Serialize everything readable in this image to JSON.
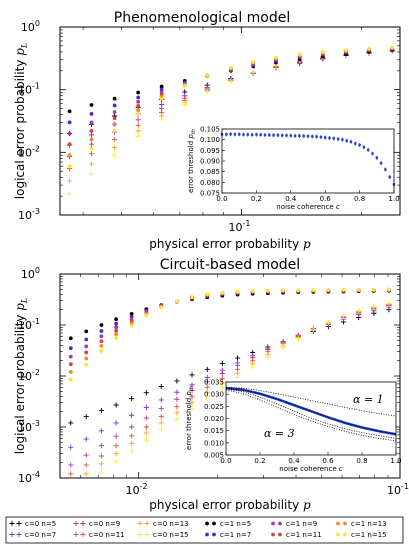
{
  "colors": {
    "c0_n5": "#000000",
    "c0_n7": "#8a2be2",
    "c0_n9": "#b8359c",
    "c0_n11": "#e0543a",
    "c0_n13": "#f5a623",
    "c0_n15": "#ffee33",
    "c1_n5": "#000000",
    "c1_n7": "#4b2ac8",
    "c1_n9": "#9b3dbd",
    "c1_n11": "#e23c3c",
    "c1_n13": "#f08a30",
    "c1_n15": "#ffe033",
    "inset_line": "#1f3fd6"
  },
  "legend": {
    "row1": [
      "c=0 n=5",
      "c=0 n=9",
      "c=0 n=13",
      "c=1 n=5",
      "c=1 n=9",
      "c=1 n=13"
    ],
    "row2": [
      "c=0 n=7",
      "c=0 n=11",
      "c=0 n=15",
      "c=1 n=7",
      "c=1 n=11",
      "c=1 n=15"
    ]
  },
  "chart_data": [
    {
      "type": "scatter",
      "title": "Phenomenological model",
      "xlabel": "physical error probability p",
      "ylabel": "logical error probability p_L",
      "xscale": "log",
      "yscale": "log",
      "xlim": [
        0.035,
        0.25
      ],
      "ylim": [
        0.001,
        1
      ],
      "x_tick_labels": [
        "10^-1"
      ],
      "y_tick_labels": [
        "10^-3",
        "10^-2",
        "10^-1",
        "10^0"
      ],
      "x": [
        0.037,
        0.042,
        0.048,
        0.055,
        0.063,
        0.072,
        0.082,
        0.094,
        0.107,
        0.122,
        0.14,
        0.16,
        0.183,
        0.209,
        0.239
      ],
      "series": [
        {
          "name": "c=0 n=5",
          "marker": "+",
          "values": [
            0.02,
            0.028,
            0.038,
            0.052,
            0.07,
            0.092,
            0.118,
            0.15,
            0.185,
            0.225,
            0.265,
            0.31,
            0.35,
            0.385,
            0.415
          ]
        },
        {
          "name": "c=0 n=7",
          "marker": "+",
          "values": [
            0.013,
            0.019,
            0.028,
            0.041,
            0.058,
            0.08,
            0.108,
            0.142,
            0.182,
            0.225,
            0.27,
            0.315,
            0.355,
            0.39,
            0.42
          ]
        },
        {
          "name": "c=0 n=9",
          "marker": "+",
          "values": [
            0.0085,
            0.0135,
            0.021,
            0.033,
            0.05,
            0.073,
            0.103,
            0.14,
            0.183,
            0.23,
            0.278,
            0.322,
            0.362,
            0.395,
            0.425
          ]
        },
        {
          "name": "c=0 n=11",
          "marker": "+",
          "values": [
            0.0055,
            0.0095,
            0.016,
            0.027,
            0.043,
            0.067,
            0.099,
            0.139,
            0.185,
            0.235,
            0.285,
            0.33,
            0.368,
            0.4,
            0.43
          ]
        },
        {
          "name": "c=0 n=13",
          "marker": "+",
          "values": [
            0.0035,
            0.0065,
            0.012,
            0.022,
            0.038,
            0.062,
            0.096,
            0.138,
            0.188,
            0.24,
            0.29,
            0.335,
            0.372,
            0.404,
            0.432
          ]
        },
        {
          "name": "c=0 n=15",
          "marker": "+",
          "values": [
            0.0022,
            0.0045,
            0.009,
            0.018,
            0.033,
            0.058,
            0.093,
            0.138,
            0.19,
            0.245,
            0.295,
            0.34,
            0.376,
            0.407,
            0.434
          ]
        },
        {
          "name": "c=1 n=5",
          "marker": "o",
          "values": [
            0.045,
            0.057,
            0.072,
            0.09,
            0.112,
            0.138,
            0.168,
            0.2,
            0.235,
            0.27,
            0.305,
            0.34,
            0.37,
            0.4,
            0.43
          ]
        },
        {
          "name": "c=1 n=7",
          "marker": "o",
          "values": [
            0.03,
            0.041,
            0.056,
            0.075,
            0.1,
            0.13,
            0.165,
            0.205,
            0.245,
            0.285,
            0.325,
            0.36,
            0.39,
            0.42,
            0.445
          ]
        },
        {
          "name": "c=1 n=9",
          "marker": "o",
          "values": [
            0.02,
            0.03,
            0.044,
            0.064,
            0.09,
            0.124,
            0.164,
            0.21,
            0.255,
            0.3,
            0.34,
            0.375,
            0.405,
            0.43,
            0.455
          ]
        },
        {
          "name": "c=1 n=11",
          "marker": "o",
          "values": [
            0.0135,
            0.022,
            0.035,
            0.055,
            0.083,
            0.12,
            0.165,
            0.215,
            0.265,
            0.31,
            0.35,
            0.385,
            0.415,
            0.44,
            0.46
          ]
        },
        {
          "name": "c=1 n=13",
          "marker": "o",
          "values": [
            0.009,
            0.016,
            0.028,
            0.047,
            0.077,
            0.117,
            0.166,
            0.22,
            0.272,
            0.318,
            0.358,
            0.392,
            0.42,
            0.445,
            0.465
          ]
        },
        {
          "name": "c=1 n=15",
          "marker": "o",
          "values": [
            0.006,
            0.0115,
            0.022,
            0.041,
            0.072,
            0.115,
            0.168,
            0.225,
            0.278,
            0.325,
            0.365,
            0.398,
            0.425,
            0.45,
            0.47
          ]
        }
      ],
      "inset": {
        "type": "scatter",
        "xlabel": "noise coherence c",
        "ylabel": "error threshold p_th",
        "xlim": [
          0,
          1
        ],
        "ylim": [
          0.075,
          0.105
        ],
        "x_tick_labels": [
          "0.0",
          "0.2",
          "0.4",
          "0.6",
          "0.8",
          "1.0"
        ],
        "y_tick_labels": [
          "0.075",
          "0.080",
          "0.085",
          "0.090",
          "0.095",
          "0.100",
          "0.105"
        ],
        "x": [
          0,
          0.025,
          0.05,
          0.075,
          0.1,
          0.125,
          0.15,
          0.175,
          0.2,
          0.225,
          0.25,
          0.275,
          0.3,
          0.325,
          0.35,
          0.375,
          0.4,
          0.425,
          0.45,
          0.475,
          0.5,
          0.525,
          0.55,
          0.575,
          0.6,
          0.625,
          0.65,
          0.675,
          0.7,
          0.725,
          0.75,
          0.775,
          0.8,
          0.825,
          0.85,
          0.875,
          0.9,
          0.925,
          0.95,
          0.975,
          1.0
        ],
        "values": [
          0.1025,
          0.1025,
          0.1026,
          0.1025,
          0.1025,
          0.1024,
          0.1024,
          0.1023,
          0.1024,
          0.1023,
          0.1022,
          0.1022,
          0.1021,
          0.1021,
          0.102,
          0.102,
          0.1019,
          0.1018,
          0.1018,
          0.1017,
          0.1016,
          0.1015,
          0.1014,
          0.1012,
          0.101,
          0.1008,
          0.1006,
          0.1003,
          0.1,
          0.0995,
          0.099,
          0.0982,
          0.0975,
          0.0965,
          0.0952,
          0.0935,
          0.0915,
          0.089,
          0.086,
          0.0825,
          0.079
        ]
      }
    },
    {
      "type": "scatter",
      "title": "Circuit-based model",
      "xlabel": "physical error probability p",
      "ylabel": "logical error probability p_L",
      "xscale": "log",
      "yscale": "log",
      "xlim": [
        0.005,
        0.1
      ],
      "ylim": [
        0.0001,
        1
      ],
      "x_tick_labels": [
        "10^-2",
        "10^-1"
      ],
      "y_tick_labels": [
        "10^-4",
        "10^-3",
        "10^-2",
        "10^-1",
        "10^0"
      ],
      "x": [
        0.0055,
        0.0063,
        0.0072,
        0.0082,
        0.0094,
        0.0107,
        0.0122,
        0.014,
        0.016,
        0.0183,
        0.0209,
        0.0239,
        0.0273,
        0.0312,
        0.0357,
        0.0408,
        0.0466,
        0.0532,
        0.0608,
        0.0695,
        0.0794,
        0.0907
      ],
      "series": [
        {
          "name": "c=0 n=5",
          "marker": "+",
          "values": [
            0.0012,
            0.0016,
            0.0021,
            0.0027,
            0.0036,
            0.0047,
            0.0062,
            0.008,
            0.0105,
            0.0135,
            0.0175,
            0.0225,
            0.029,
            0.037,
            0.047,
            0.06,
            0.075,
            0.093,
            0.115,
            0.14,
            0.17,
            0.2
          ]
        },
        {
          "name": "c=0 n=7",
          "marker": "+",
          "values": [
            0.0004,
            0.00058,
            0.00084,
            0.0012,
            0.0017,
            0.0024,
            0.0034,
            0.0048,
            0.0067,
            0.0094,
            0.013,
            0.018,
            0.025,
            0.034,
            0.046,
            0.061,
            0.08,
            0.103,
            0.13,
            0.16,
            0.19,
            0.225
          ]
        },
        {
          "name": "c=0 n=9",
          "marker": "+",
          "values": [
            0.00018,
            0.00028,
            0.00043,
            0.00066,
            0.001,
            0.0015,
            0.0023,
            0.0035,
            0.0052,
            0.0077,
            0.0112,
            0.0162,
            0.023,
            0.033,
            0.046,
            0.063,
            0.085,
            0.11,
            0.14,
            0.172,
            0.205,
            0.24
          ]
        },
        {
          "name": "c=0 n=11",
          "marker": "+",
          "values": [
            0.00012,
            0.00018,
            0.00027,
            0.00043,
            0.00067,
            0.001,
            0.0016,
            0.0025,
            0.0039,
            0.006,
            0.009,
            0.0135,
            0.02,
            0.03,
            0.043,
            0.061,
            0.085,
            0.112,
            0.145,
            0.18,
            0.215,
            0.25
          ]
        },
        {
          "name": "c=0 n=13",
          "marker": "+",
          "values": [
            null,
            0.00012,
            0.00019,
            0.0003,
            0.00048,
            0.00076,
            0.0012,
            0.0019,
            0.003,
            0.0047,
            0.0073,
            0.0113,
            0.0173,
            0.026,
            0.039,
            0.057,
            0.082,
            0.112,
            0.148,
            0.185,
            0.222,
            0.258
          ]
        },
        {
          "name": "c=0 n=15",
          "marker": "+",
          "values": [
            null,
            null,
            0.00013,
            0.00021,
            0.00034,
            0.00055,
            0.0009,
            0.0014,
            0.0023,
            0.0037,
            0.0059,
            0.0094,
            0.015,
            0.023,
            0.036,
            0.054,
            0.08,
            0.112,
            0.15,
            0.19,
            0.228,
            0.265
          ]
        },
        {
          "name": "c=1 n=5",
          "marker": "o",
          "values": [
            0.055,
            0.075,
            0.1,
            0.13,
            0.165,
            0.205,
            0.245,
            0.285,
            0.32,
            0.35,
            0.375,
            0.395,
            0.41,
            0.42,
            0.43,
            0.44,
            0.445,
            0.45,
            0.455,
            0.46,
            0.465,
            0.47
          ]
        },
        {
          "name": "c=1 n=7",
          "marker": "o",
          "values": [
            0.035,
            0.052,
            0.076,
            0.106,
            0.145,
            0.19,
            0.24,
            0.29,
            0.335,
            0.37,
            0.4,
            0.42,
            0.435,
            0.445,
            0.452,
            0.458,
            0.462,
            0.466,
            0.47,
            0.473,
            0.476,
            0.48
          ]
        },
        {
          "name": "c=1 n=9",
          "marker": "o",
          "values": [
            0.024,
            0.038,
            0.06,
            0.09,
            0.13,
            0.18,
            0.235,
            0.29,
            0.34,
            0.38,
            0.41,
            0.43,
            0.445,
            0.455,
            0.462,
            0.467,
            0.471,
            0.475,
            0.478,
            0.481,
            0.484,
            0.487
          ]
        },
        {
          "name": "c=1 n=11",
          "marker": "o",
          "values": [
            0.017,
            0.029,
            0.048,
            0.077,
            0.118,
            0.17,
            0.23,
            0.29,
            0.345,
            0.39,
            0.42,
            0.44,
            0.452,
            0.46,
            0.467,
            0.472,
            0.476,
            0.479,
            0.482,
            0.485,
            0.488,
            0.49
          ]
        },
        {
          "name": "c=1 n=13",
          "marker": "o",
          "values": [
            0.012,
            0.022,
            0.039,
            0.066,
            0.107,
            0.162,
            0.226,
            0.29,
            0.35,
            0.395,
            0.425,
            0.445,
            0.457,
            0.465,
            0.471,
            0.476,
            0.48,
            0.483,
            0.486,
            0.488,
            0.49,
            0.492
          ]
        },
        {
          "name": "c=1 n=15",
          "marker": "o",
          "values": [
            0.0085,
            0.0165,
            0.031,
            0.056,
            0.097,
            0.155,
            0.222,
            0.29,
            0.352,
            0.4,
            0.43,
            0.45,
            0.461,
            0.469,
            0.475,
            0.479,
            0.483,
            0.486,
            0.488,
            0.49,
            0.492,
            0.494
          ]
        }
      ],
      "inset": {
        "type": "line",
        "xlabel": "noise coherence c",
        "ylabel": "error threshold p_th",
        "xlim": [
          0,
          1
        ],
        "ylim": [
          0.005,
          0.035
        ],
        "x_tick_labels": [
          "0.0",
          "0.2",
          "0.4",
          "0.6",
          "0.8",
          "1.0"
        ],
        "y_tick_labels": [
          "0.005",
          "0.010",
          "0.015",
          "0.020",
          "0.025",
          "0.030",
          "0.035"
        ],
        "annotations": [
          "α = 1",
          "α = 3"
        ],
        "x": [
          0,
          0.1,
          0.2,
          0.3,
          0.4,
          0.5,
          0.6,
          0.7,
          0.8,
          0.9,
          1.0
        ],
        "series": [
          {
            "values": [
              0.0325,
              0.0318,
              0.0302,
              0.028,
              0.0255,
              0.023,
              0.0205,
              0.0182,
              0.0163,
              0.0148,
              0.0135
            ]
          },
          {
            "style": "dotted",
            "values": [
              0.0328,
              0.0325,
              0.0315,
              0.0302,
              0.0288,
              0.0274,
              0.026,
              0.0246,
              0.0232,
              0.022,
              0.021
            ]
          },
          {
            "style": "dotted",
            "values": [
              0.0322,
              0.031,
              0.0288,
              0.026,
              0.023,
              0.0202,
              0.0178,
              0.0158,
              0.0142,
              0.013,
              0.0118
            ]
          },
          {
            "style": "dotted",
            "values": [
              0.0318,
              0.0302,
              0.0276,
              0.0246,
              0.0216,
              0.019,
              0.0167,
              0.0147,
              0.0131,
              0.0118,
              0.0108
            ]
          }
        ]
      }
    }
  ]
}
